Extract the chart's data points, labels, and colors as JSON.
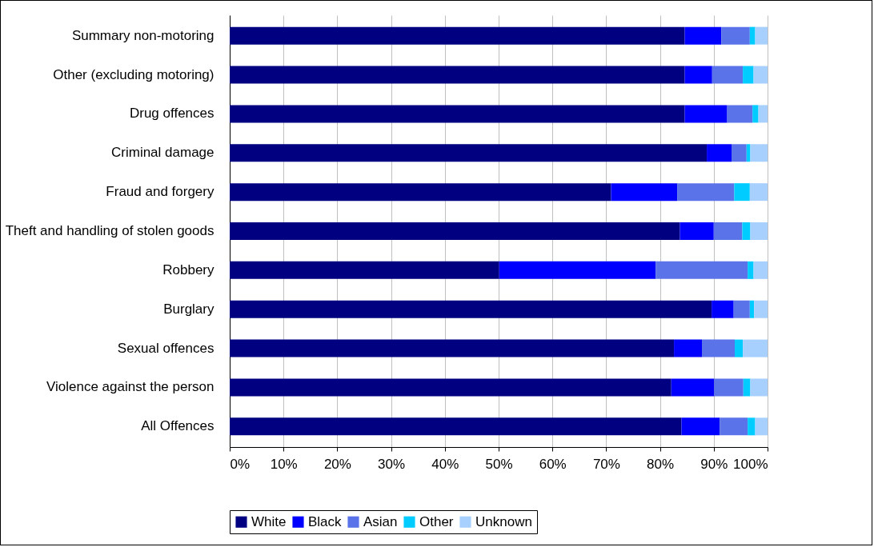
{
  "chart_data": {
    "type": "bar",
    "orientation": "horizontal",
    "stacked": true,
    "categories": [
      "Summary non-motoring",
      "Other (excluding motoring)",
      "Drug offences",
      "Criminal damage",
      "Fraud and forgery",
      "Theft and handling of stolen goods",
      "Robbery",
      "Burglary",
      "Sexual offences",
      "Violence against the person",
      "All Offences"
    ],
    "series": [
      {
        "name": "White",
        "color": "#000080",
        "values": [
          84.6,
          84.6,
          84.6,
          88.7,
          70.9,
          83.7,
          50.1,
          89.6,
          82.6,
          82.1,
          84.0
        ]
      },
      {
        "name": "Black",
        "color": "#0000ff",
        "values": [
          6.8,
          5.1,
          7.9,
          4.6,
          12.3,
          6.3,
          29.1,
          4.1,
          5.2,
          8.0,
          7.1
        ]
      },
      {
        "name": "Asian",
        "color": "#5b73e8",
        "values": [
          5.3,
          5.7,
          4.7,
          2.8,
          10.6,
          5.3,
          17.1,
          3.0,
          6.1,
          5.4,
          5.2
        ]
      },
      {
        "name": "Other",
        "color": "#00ccff",
        "values": [
          1.0,
          2.0,
          1.1,
          0.7,
          2.9,
          1.5,
          1.1,
          0.8,
          1.5,
          1.3,
          1.4
        ]
      },
      {
        "name": "Unknown",
        "color": "#a8d0ff",
        "values": [
          2.3,
          2.6,
          1.7,
          3.2,
          3.3,
          3.2,
          2.6,
          2.5,
          4.6,
          3.2,
          2.3
        ]
      }
    ],
    "xlim": [
      0,
      100
    ],
    "xticks": [
      {
        "value": 0,
        "label": "0%"
      },
      {
        "value": 10,
        "label": "10%"
      },
      {
        "value": 20,
        "label": "20%"
      },
      {
        "value": 30,
        "label": "30%"
      },
      {
        "value": 40,
        "label": "40%"
      },
      {
        "value": 50,
        "label": "50%"
      },
      {
        "value": 60,
        "label": "60%"
      },
      {
        "value": 70,
        "label": "70%"
      },
      {
        "value": 80,
        "label": "80%"
      },
      {
        "value": 90,
        "label": "90%"
      },
      {
        "value": 100,
        "label": "100%"
      }
    ],
    "grid": "x",
    "legend": "bottom"
  }
}
